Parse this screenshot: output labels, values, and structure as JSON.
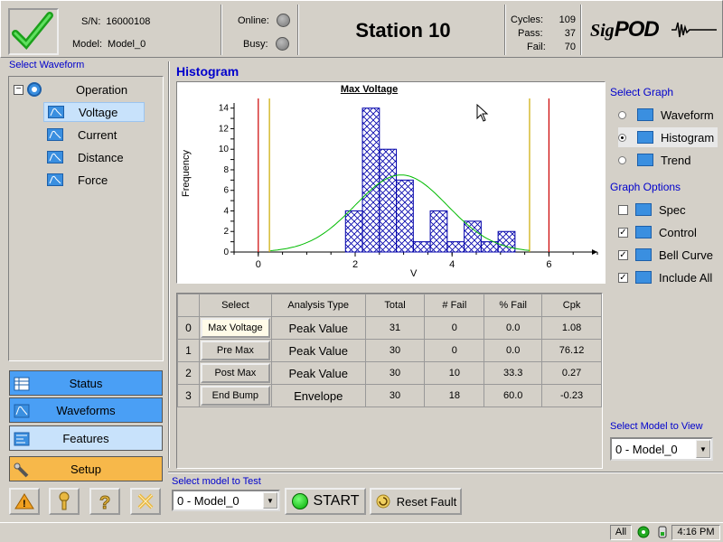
{
  "header": {
    "serial_label": "S/N:",
    "serial": "16000108",
    "model_label": "Model:",
    "model": "Model_0",
    "online_label": "Online:",
    "busy_label": "Busy:",
    "station_title": "Station 10",
    "cycles_label": "Cycles:",
    "cycles": "109",
    "pass_label": "Pass:",
    "pass": "37",
    "fail_label": "Fail:",
    "fail": "70",
    "logo_sig": "Sig",
    "logo_pod": "POD"
  },
  "left_panel": {
    "title": "Select Waveform",
    "root": "Operation",
    "items": [
      {
        "label": "Voltage",
        "selected": true
      },
      {
        "label": "Current"
      },
      {
        "label": "Distance"
      },
      {
        "label": "Force"
      }
    ]
  },
  "nav": {
    "status": "Status",
    "waveforms": "Waveforms",
    "features": "Features",
    "setup": "Setup"
  },
  "main": {
    "title": "Histogram"
  },
  "chart_data": {
    "type": "bar",
    "title": "Max Voltage",
    "xlabel": "V",
    "ylabel": "Frequency",
    "xlim": [
      -0.5,
      7
    ],
    "ylim": [
      0,
      14.5
    ],
    "xticks": [
      0,
      2,
      4,
      6
    ],
    "yticks": [
      0,
      1,
      2,
      3,
      4,
      5,
      6,
      7,
      8,
      9,
      10,
      11,
      12,
      13,
      14
    ],
    "bins": [
      {
        "x0": 1.8,
        "x1": 2.15,
        "count": 4
      },
      {
        "x0": 2.15,
        "x1": 2.5,
        "count": 14
      },
      {
        "x0": 2.5,
        "x1": 2.85,
        "count": 10
      },
      {
        "x0": 2.85,
        "x1": 3.2,
        "count": 7
      },
      {
        "x0": 3.2,
        "x1": 3.55,
        "count": 1
      },
      {
        "x0": 3.55,
        "x1": 3.9,
        "count": 4
      },
      {
        "x0": 3.9,
        "x1": 4.25,
        "count": 1
      },
      {
        "x0": 4.25,
        "x1": 4.6,
        "count": 3
      },
      {
        "x0": 4.6,
        "x1": 4.95,
        "count": 1
      },
      {
        "x0": 4.95,
        "x1": 5.3,
        "count": 2
      }
    ],
    "spec_limits": [
      0,
      6
    ],
    "control_limits": [
      0.23,
      5.6
    ],
    "bell_curve": {
      "mean": 2.95,
      "sd": 0.95,
      "peak": 7.5
    },
    "colors": {
      "bar": "#0000aa",
      "spec": "#cc0000",
      "control": "#ccaa00",
      "curve": "#00bb00"
    }
  },
  "table": {
    "headers": [
      "",
      "Select",
      "Analysis Type",
      "Total",
      "# Fail",
      "% Fail",
      "Cpk"
    ],
    "rows": [
      [
        "0",
        "Max Voltage",
        "Peak Value",
        "31",
        "0",
        "0.0",
        "1.08"
      ],
      [
        "1",
        "Pre Max",
        "Peak Value",
        "30",
        "0",
        "0.0",
        "76.12"
      ],
      [
        "2",
        "Post Max",
        "Peak Value",
        "30",
        "10",
        "33.3",
        "0.27"
      ],
      [
        "3",
        "End Bump",
        "Envelope",
        "30",
        "18",
        "60.0",
        "-0.23"
      ]
    ]
  },
  "graph_select": {
    "title": "Select Graph",
    "options": [
      {
        "label": "Waveform",
        "checked": false
      },
      {
        "label": "Histogram",
        "checked": true
      },
      {
        "label": "Trend",
        "checked": false
      }
    ]
  },
  "graph_options": {
    "title": "Graph Options",
    "options": [
      {
        "label": "Spec",
        "checked": false
      },
      {
        "label": "Control",
        "checked": true
      },
      {
        "label": "Bell Curve",
        "checked": true
      },
      {
        "label": "Include All",
        "checked": true
      }
    ]
  },
  "model_view": {
    "label": "Select Model to View",
    "value": "0 - Model_0"
  },
  "bottom": {
    "model_label": "Select model to Test",
    "model_value": "0 - Model_0",
    "start": "START",
    "reset": "Reset Fault"
  },
  "statusbar": {
    "filter": "All",
    "time": "4:16 PM"
  }
}
